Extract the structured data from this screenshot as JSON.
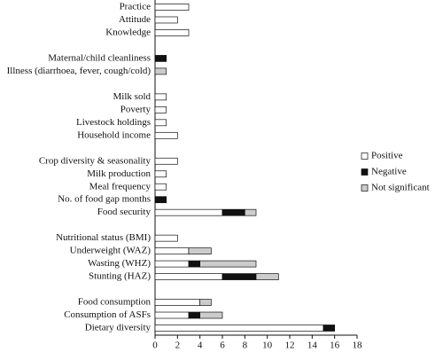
{
  "chart_data": {
    "type": "stacked-barh",
    "categories": [
      "Practice",
      "Attitude",
      "Knowledge",
      null,
      "Maternal/child cleanliness",
      "Illness (diarrhoea, fever, cough/cold)",
      null,
      "Milk sold",
      "Poverty",
      "Livestock holdings",
      "Household income",
      null,
      "Crop diversity & seasonality",
      "Milk production",
      "Meal frequency",
      "No. of food gap months",
      "Food security",
      null,
      "Nutritional status (BMI)",
      "Underweight (WAZ)",
      "Wasting (WHZ)",
      "Stunting (HAZ)",
      null,
      "Food consumption",
      "Consumption of ASFs",
      "Dietary diversity"
    ],
    "series": [
      {
        "name": "Positive",
        "color": "#ffffff",
        "values": [
          3,
          2,
          3,
          null,
          0,
          0,
          null,
          1,
          1,
          1,
          2,
          null,
          2,
          1,
          1,
          0,
          6,
          null,
          2,
          3,
          3,
          6,
          null,
          4,
          3,
          15
        ]
      },
      {
        "name": "Negative",
        "color": "#111111",
        "values": [
          0,
          0,
          0,
          null,
          1,
          0,
          null,
          0,
          0,
          0,
          0,
          null,
          0,
          0,
          0,
          1,
          2,
          null,
          0,
          0,
          1,
          3,
          null,
          0,
          1,
          1
        ]
      },
      {
        "name": "Not significant",
        "color": "#cccccc",
        "values": [
          0,
          0,
          0,
          null,
          0,
          1,
          null,
          0,
          0,
          0,
          0,
          null,
          0,
          0,
          0,
          0,
          1,
          null,
          0,
          2,
          5,
          2,
          null,
          1,
          2,
          0
        ]
      }
    ],
    "xlim": [
      0,
      18
    ],
    "xticks": [
      0,
      2,
      4,
      6,
      8,
      10,
      12,
      14,
      16,
      18
    ],
    "legend": "right"
  }
}
